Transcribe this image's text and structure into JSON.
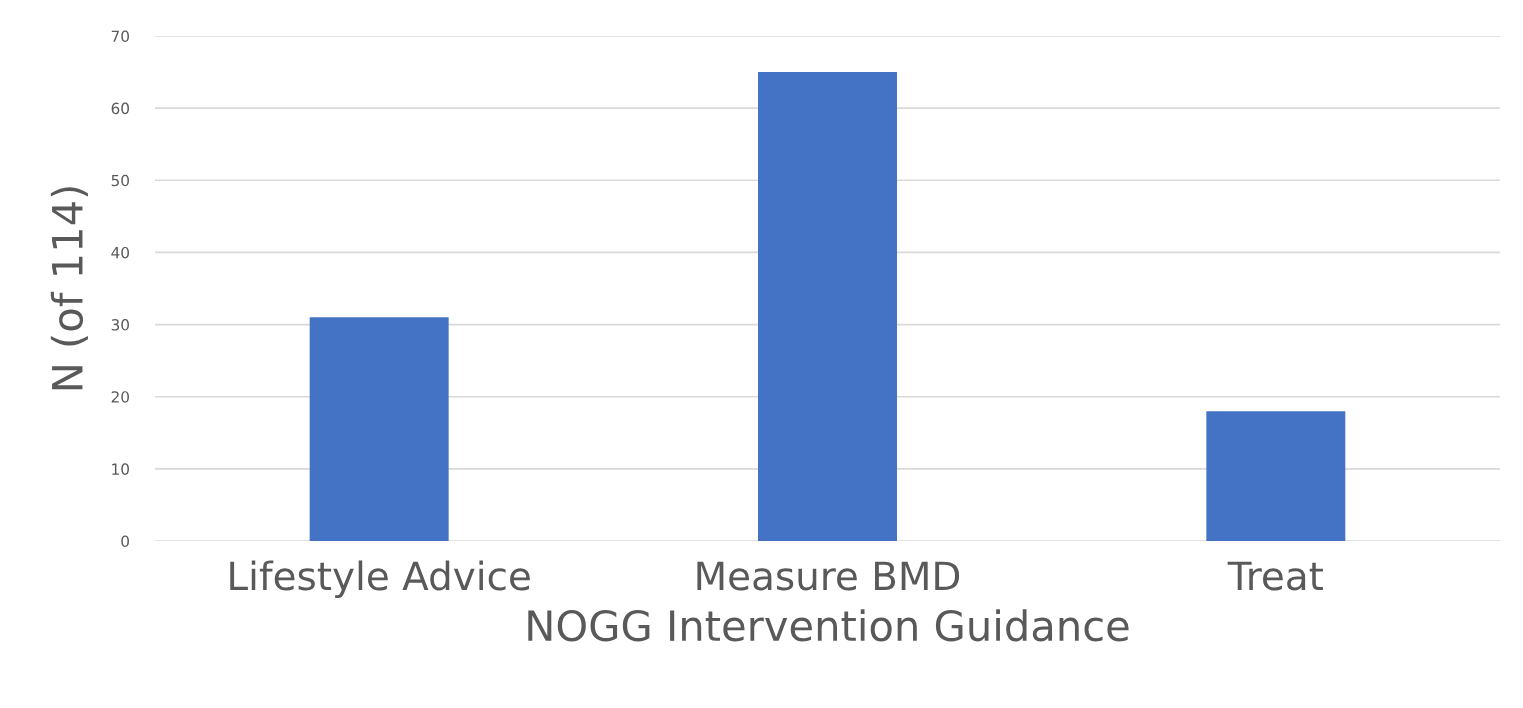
{
  "chart_data": {
    "type": "bar",
    "xlabel": "NOGG Intervention Guidance",
    "ylabel": "N (of 114)",
    "categories": [
      "Lifestyle Advice",
      "Measure BMD",
      "Treat"
    ],
    "values": [
      31,
      65,
      18
    ],
    "color": "#4472c4",
    "ylim": [
      0,
      70
    ],
    "yticks": [
      0,
      10,
      20,
      30,
      40,
      50,
      60,
      70
    ],
    "grid": "y"
  }
}
